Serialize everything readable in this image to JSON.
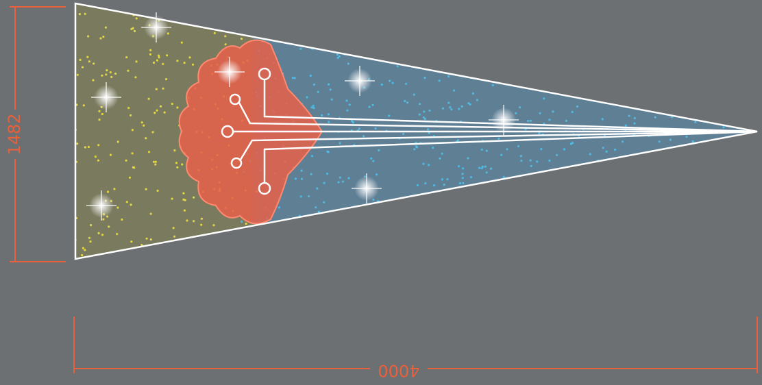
{
  "dimensions": {
    "height": 1482,
    "width": 4000
  }
}
